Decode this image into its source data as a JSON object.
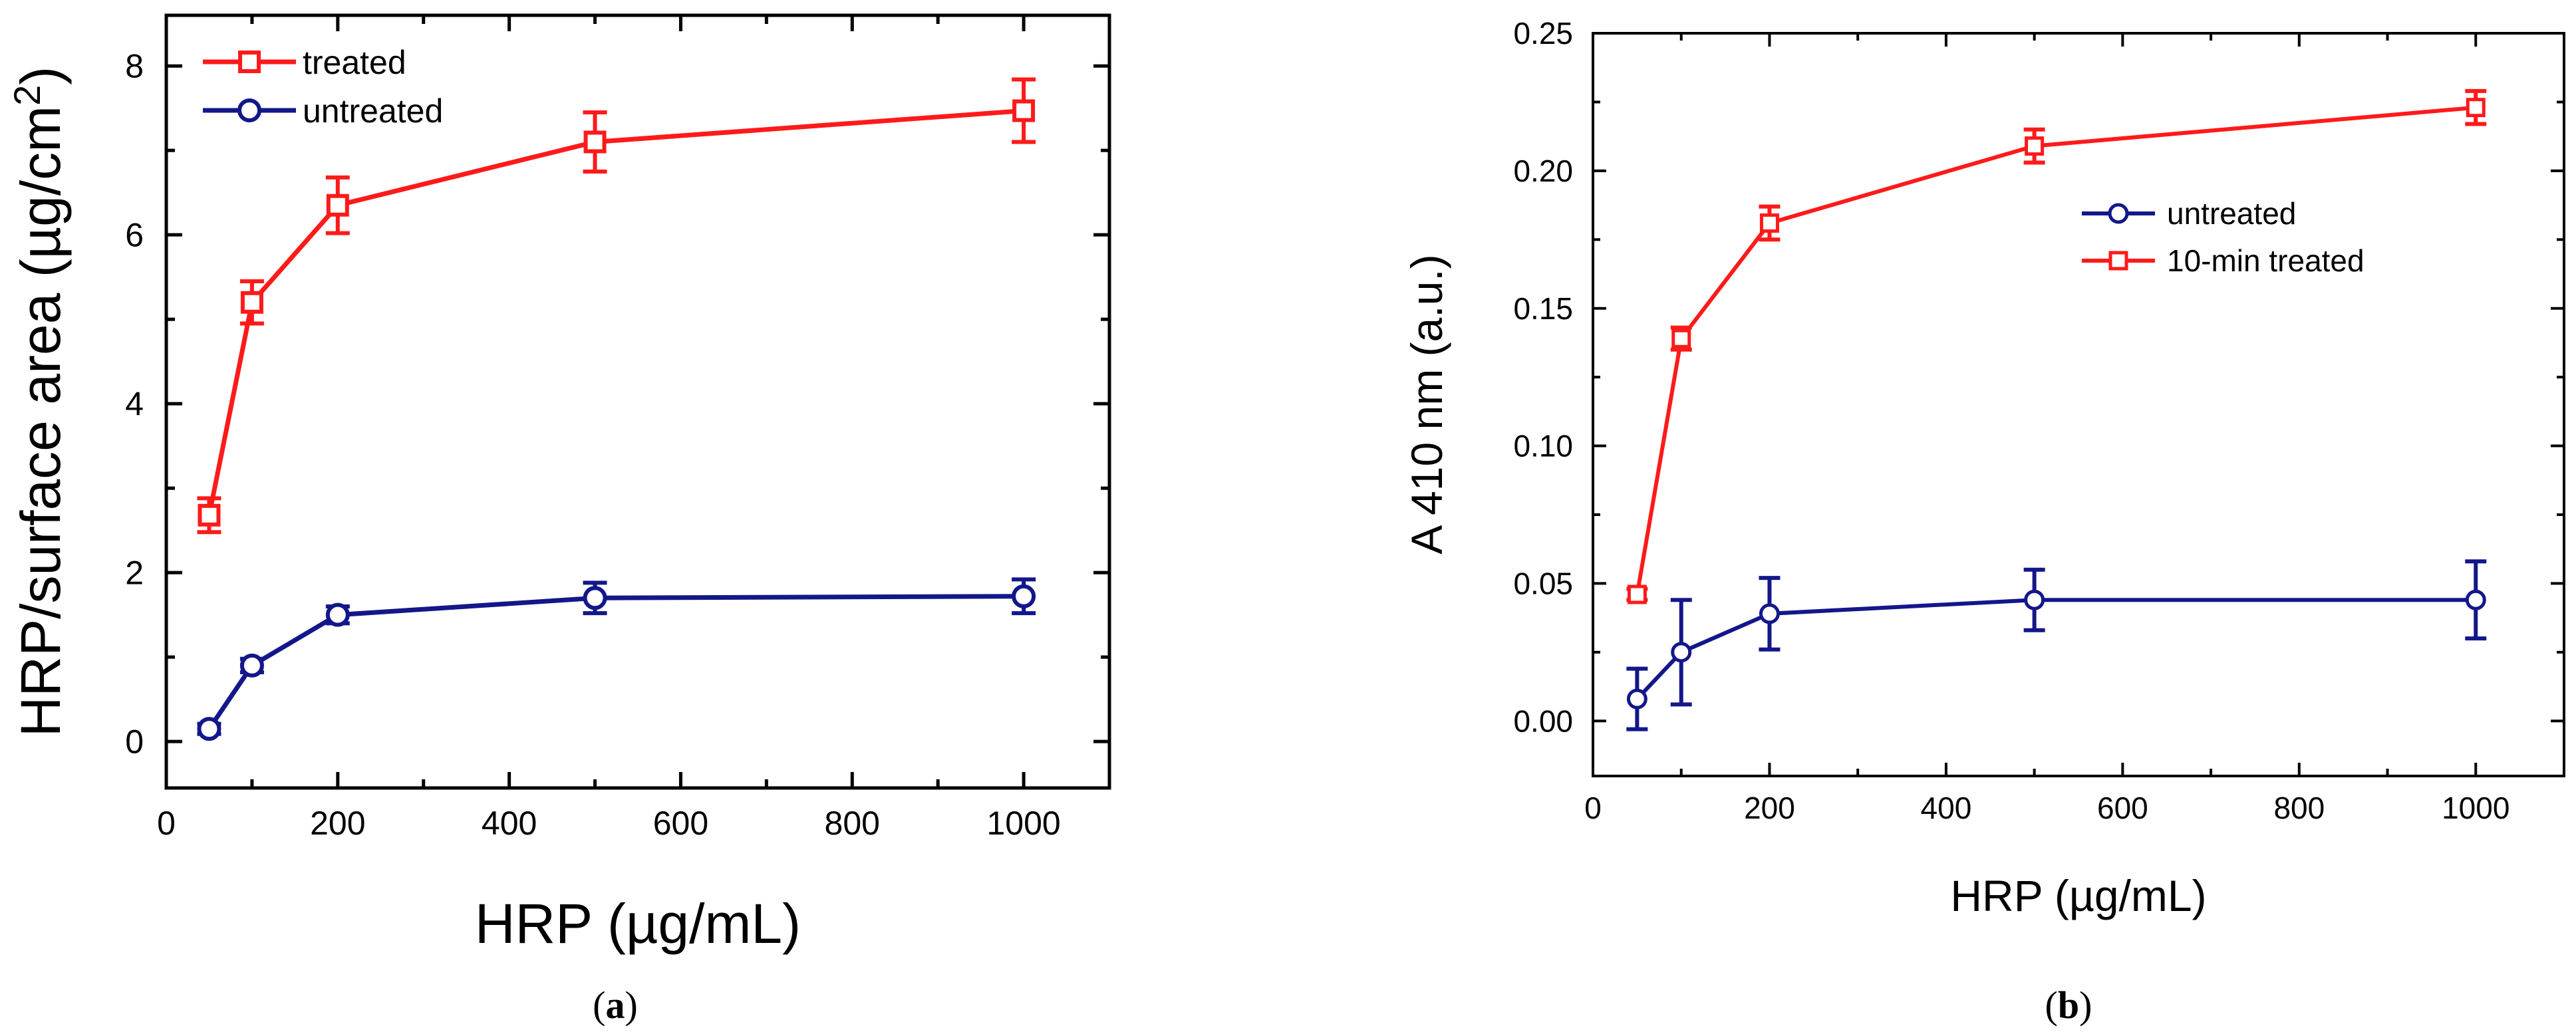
{
  "chart_data": [
    {
      "panel": "a",
      "type": "line",
      "caption_prefix": "(",
      "caption_letter": "a",
      "caption_suffix": ")",
      "xlabel": "HRP (µg/mL)",
      "ylabel_main": "HRP/surface area (µg/cm",
      "ylabel_sup": "2",
      "ylabel_end": ")",
      "xlim": [
        0,
        1100
      ],
      "ylim": [
        -0.55,
        8.6
      ],
      "xticks": [
        0,
        200,
        400,
        600,
        800,
        1000
      ],
      "xtick_labels": [
        "0",
        "200",
        "400",
        "600",
        "800",
        "1000"
      ],
      "xminor": [
        100,
        300,
        500,
        700,
        900,
        1100
      ],
      "yticks": [
        0,
        2,
        4,
        6,
        8
      ],
      "ytick_labels": [
        "0",
        "2",
        "4",
        "6",
        "8"
      ],
      "yminor": [
        1,
        3,
        5,
        7
      ],
      "legend_position": "top-left",
      "series": [
        {
          "name": "treated",
          "color": "#ff1a1a",
          "marker": "square",
          "x": [
            50,
            100,
            200,
            500,
            1000
          ],
          "y": [
            2.68,
            5.2,
            6.35,
            7.1,
            7.47
          ],
          "err": [
            0.2,
            0.25,
            0.33,
            0.35,
            0.37
          ]
        },
        {
          "name": "untreated",
          "color": "#13178a",
          "marker": "circle",
          "x": [
            50,
            100,
            200,
            500,
            1000
          ],
          "y": [
            0.15,
            0.9,
            1.5,
            1.7,
            1.72
          ],
          "err": [
            0.06,
            0.08,
            0.1,
            0.18,
            0.2
          ]
        }
      ]
    },
    {
      "panel": "b",
      "type": "line",
      "caption_prefix": "(",
      "caption_letter": "b",
      "caption_suffix": ")",
      "xlabel": "HRP (µg/mL)",
      "ylabel_main": "A 410 nm (a.u.)",
      "ylabel_sup": "",
      "ylabel_end": "",
      "xlim": [
        0,
        1100
      ],
      "ylim": [
        -0.02,
        0.25
      ],
      "xticks": [
        0,
        200,
        400,
        600,
        800,
        1000
      ],
      "xtick_labels": [
        "0",
        "200",
        "400",
        "600",
        "800",
        "1000"
      ],
      "xminor": [
        100,
        300,
        500,
        700,
        900,
        1100
      ],
      "yticks": [
        0,
        0.05,
        0.1,
        0.15,
        0.2,
        0.25
      ],
      "ytick_labels": [
        "0.00",
        "0.05",
        "0.10",
        "0.15",
        "0.20",
        "0.25"
      ],
      "yminor": [
        0.025,
        0.075,
        0.125,
        0.175,
        0.225
      ],
      "legend_position": "upper-right",
      "series": [
        {
          "name": "untreated",
          "color": "#13178a",
          "marker": "circle",
          "x": [
            50,
            100,
            200,
            500,
            1000
          ],
          "y": [
            0.008,
            0.025,
            0.039,
            0.044,
            0.044
          ],
          "err": [
            0.011,
            0.019,
            0.013,
            0.011,
            0.014
          ]
        },
        {
          "name": "10-min treated",
          "color": "#ff1a1a",
          "marker": "square",
          "x": [
            50,
            100,
            200,
            500,
            1000
          ],
          "y": [
            0.046,
            0.139,
            0.181,
            0.209,
            0.223
          ],
          "err": [
            0.002,
            0.004,
            0.006,
            0.006,
            0.006
          ]
        }
      ]
    }
  ]
}
